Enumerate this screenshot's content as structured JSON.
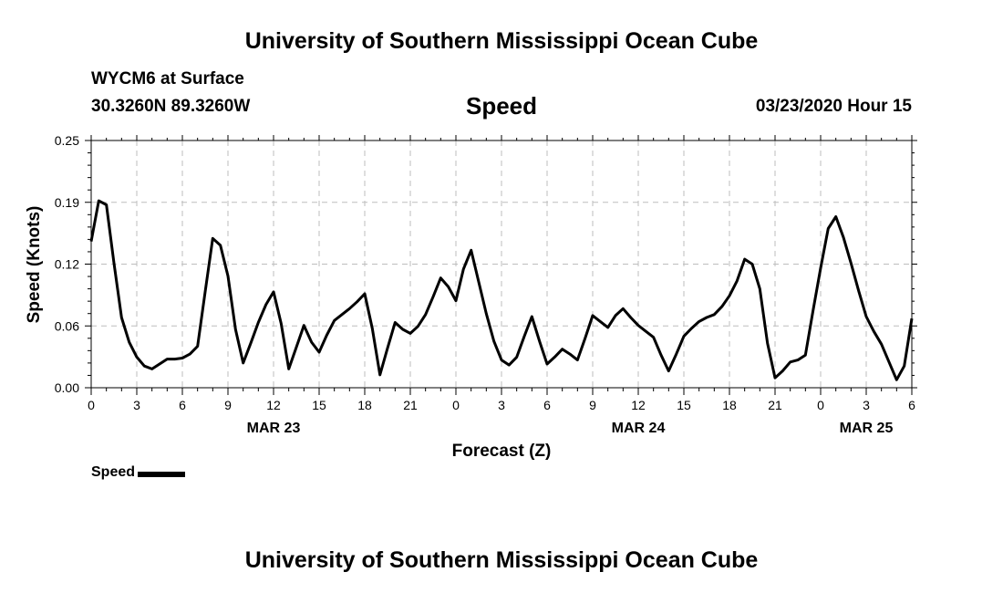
{
  "header": {
    "title": "University of Southern Mississippi Ocean Cube",
    "station": "WYCM6 at Surface",
    "coords": "30.3260N 89.3260W",
    "datetime": "03/23/2020 Hour 15",
    "footer_title": "University of Southern Mississippi Ocean Cube"
  },
  "chart_data": {
    "type": "line",
    "title": "Speed",
    "xlabel": "Forecast (Z)",
    "ylabel": "Speed (Knots)",
    "xlim": [
      0,
      54
    ],
    "ylim": [
      0,
      0.25
    ],
    "y_ticks": [
      "0.00",
      "0.06",
      "0.12",
      "0.19",
      "0.25"
    ],
    "x_ticks": [
      "0",
      "3",
      "6",
      "9",
      "12",
      "15",
      "18",
      "21",
      "0",
      "3",
      "6",
      "9",
      "12",
      "15",
      "18",
      "21",
      "0",
      "3",
      "6"
    ],
    "day_labels": [
      {
        "label": "MAR 23",
        "x": 12
      },
      {
        "label": "MAR 24",
        "x": 36
      },
      {
        "label": "MAR 25",
        "x": 51
      }
    ],
    "grid": true,
    "legend_position": "bottom-left",
    "series": [
      {
        "name": "Speed",
        "color": "#000000",
        "x": [
          0,
          0.5,
          1,
          1.5,
          2,
          2.5,
          3,
          3.5,
          4,
          4.5,
          5,
          5.5,
          6,
          6.5,
          7,
          7.5,
          8,
          8.5,
          9,
          9.5,
          10,
          10.5,
          11,
          11.5,
          12,
          12.5,
          13,
          13.5,
          14,
          14.5,
          15,
          15.5,
          16,
          16.5,
          17,
          17.5,
          18,
          18.5,
          19,
          19.5,
          20,
          20.5,
          21,
          21.5,
          22,
          22.5,
          23,
          23.5,
          24,
          24.5,
          25,
          25.5,
          26,
          26.5,
          27,
          27.5,
          28,
          28.5,
          29,
          29.5,
          30,
          30.5,
          31,
          31.5,
          32,
          32.5,
          33,
          33.5,
          34,
          34.5,
          35,
          35.5,
          36,
          36.5,
          37,
          37.5,
          38,
          38.5,
          39,
          39.5,
          40,
          40.5,
          41,
          41.5,
          42,
          42.5,
          43,
          43.5,
          44,
          44.5,
          45,
          45.5,
          46,
          46.5,
          47,
          47.5,
          48,
          48.5,
          49,
          49.5,
          50,
          50.5,
          51,
          51.5,
          52,
          52.5,
          53,
          53.5,
          54
        ],
        "values": [
          0.148,
          0.189,
          0.185,
          0.126,
          0.071,
          0.046,
          0.031,
          0.022,
          0.019,
          0.024,
          0.029,
          0.029,
          0.03,
          0.034,
          0.042,
          0.097,
          0.151,
          0.144,
          0.113,
          0.059,
          0.025,
          0.045,
          0.066,
          0.084,
          0.097,
          0.065,
          0.019,
          0.041,
          0.063,
          0.046,
          0.036,
          0.053,
          0.068,
          0.074,
          0.08,
          0.087,
          0.095,
          0.06,
          0.013,
          0.04,
          0.066,
          0.059,
          0.055,
          0.062,
          0.074,
          0.092,
          0.111,
          0.102,
          0.088,
          0.12,
          0.139,
          0.107,
          0.075,
          0.047,
          0.028,
          0.023,
          0.031,
          0.052,
          0.072,
          0.047,
          0.024,
          0.031,
          0.039,
          0.034,
          0.028,
          0.05,
          0.073,
          0.067,
          0.061,
          0.073,
          0.08,
          0.071,
          0.063,
          0.057,
          0.051,
          0.033,
          0.017,
          0.034,
          0.052,
          0.06,
          0.067,
          0.071,
          0.074,
          0.082,
          0.093,
          0.108,
          0.13,
          0.125,
          0.1,
          0.045,
          0.01,
          0.017,
          0.026,
          0.028,
          0.033,
          0.078,
          0.121,
          0.161,
          0.173,
          0.152,
          0.126,
          0.098,
          0.072,
          0.057,
          0.044,
          0.026,
          0.008,
          0.022,
          0.07
        ]
      }
    ]
  }
}
